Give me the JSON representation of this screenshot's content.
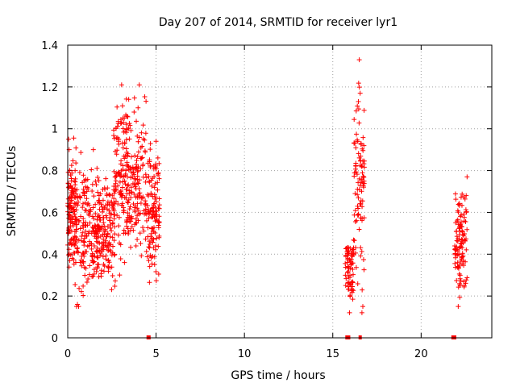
{
  "chart_data": {
    "type": "scatter",
    "title": "Day 207 of 2014, SRMTID for receiver lyr1",
    "xlabel": "GPS time / hours",
    "ylabel": "SRMTID / TECUs",
    "xlim": [
      0,
      24
    ],
    "ylim": [
      0,
      1.4
    ],
    "xticks": [
      "0",
      "5",
      "10",
      "15",
      "20"
    ],
    "yticks": [
      "0",
      "0.2",
      "0.4",
      "0.6",
      "0.8",
      "1",
      "1.2",
      "1.4"
    ],
    "grid": true,
    "marker": "+",
    "series": [
      {
        "name": "SRMTID",
        "color": "#ff0000",
        "clusters": [
          {
            "x": [
              0.0,
              0.5
            ],
            "y": [
              0.25,
              0.97
            ],
            "count": 120
          },
          {
            "x": [
              0.4,
              1.8
            ],
            "y": [
              0.15,
              0.91
            ],
            "count": 180
          },
          {
            "x": [
              1.6,
              2.7
            ],
            "y": [
              0.2,
              0.77
            ],
            "count": 150
          },
          {
            "x": [
              2.6,
              3.5
            ],
            "y": [
              0.3,
              1.22
            ],
            "count": 140
          },
          {
            "x": [
              3.4,
              4.5
            ],
            "y": [
              0.3,
              1.21
            ],
            "count": 140
          },
          {
            "x": [
              4.5,
              5.2
            ],
            "y": [
              0.25,
              0.95
            ],
            "count": 120
          },
          {
            "x": [
              15.7,
              16.2
            ],
            "y": [
              0.12,
              0.55
            ],
            "count": 70
          },
          {
            "x": [
              16.2,
              16.8
            ],
            "y": [
              0.15,
              1.33
            ],
            "count": 90
          },
          {
            "x": [
              21.9,
              22.6
            ],
            "y": [
              0.15,
              0.77
            ],
            "count": 110
          }
        ],
        "points": [
          {
            "x": 0.05,
            "y": 0.95
          },
          {
            "x": 0.08,
            "y": 0.9
          },
          {
            "x": 1.45,
            "y": 0.9
          },
          {
            "x": 3.05,
            "y": 1.21
          },
          {
            "x": 4.05,
            "y": 1.21
          },
          {
            "x": 3.1,
            "y": 1.11
          },
          {
            "x": 3.15,
            "y": 1.03
          },
          {
            "x": 5.0,
            "y": 0.94
          },
          {
            "x": 16.5,
            "y": 1.33
          },
          {
            "x": 16.55,
            "y": 1.17
          },
          {
            "x": 16.45,
            "y": 1.13
          },
          {
            "x": 16.6,
            "y": 0.93
          },
          {
            "x": 16.65,
            "y": 0.12
          },
          {
            "x": 16.7,
            "y": 0.15
          },
          {
            "x": 15.95,
            "y": 0.12
          },
          {
            "x": 22.6,
            "y": 0.77
          },
          {
            "x": 22.55,
            "y": 0.68
          },
          {
            "x": 22.1,
            "y": 0.15
          },
          {
            "x": 0.5,
            "y": 0.15
          },
          {
            "x": 0.55,
            "y": 0.16
          }
        ],
        "zeros": [
          4.55,
          4.6,
          15.8,
          15.85,
          15.9,
          16.55,
          21.8,
          21.85,
          21.9
        ]
      }
    ]
  }
}
